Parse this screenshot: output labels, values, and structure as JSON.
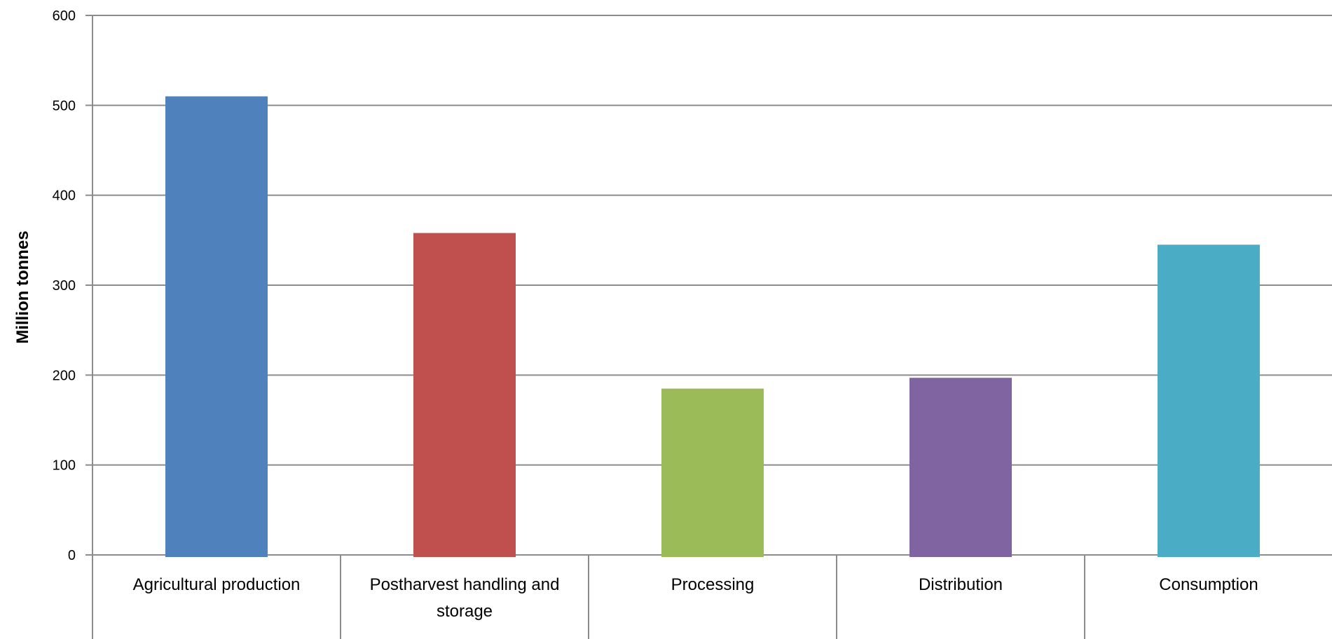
{
  "chart_data": {
    "type": "bar",
    "title": "",
    "xlabel": "",
    "ylabel": "Million tonnes",
    "ylim": [
      0,
      600
    ],
    "yticks": [
      0,
      100,
      200,
      300,
      400,
      500,
      600
    ],
    "grid": true,
    "categories": [
      [
        "Agricultural production"
      ],
      [
        "Postharvest handling and",
        "storage"
      ],
      [
        "Processing"
      ],
      [
        "Distribution"
      ],
      [
        "Consumption"
      ]
    ],
    "values": [
      510,
      358,
      185,
      197,
      345
    ],
    "colors": [
      "#4f81bd",
      "#c0504d",
      "#9bbb59",
      "#8064a2",
      "#4bacc6"
    ]
  }
}
